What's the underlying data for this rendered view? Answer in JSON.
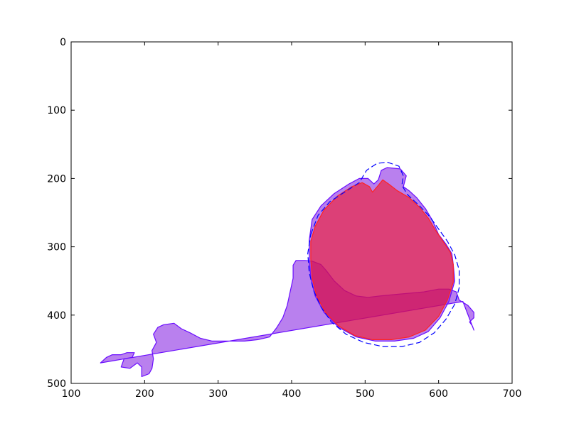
{
  "chart_data": {
    "type": "area",
    "title": "",
    "xlabel": "",
    "ylabel": "",
    "xlim": [
      100,
      700
    ],
    "ylim": [
      500,
      0
    ],
    "y_inverted": true,
    "grid": false,
    "legend": "none",
    "x_ticks": [
      "100",
      "200",
      "300",
      "400",
      "500",
      "600",
      "700"
    ],
    "y_ticks": [
      "0",
      "100",
      "200",
      "300",
      "400",
      "500"
    ],
    "x_tick_values": [
      100,
      200,
      300,
      400,
      500,
      600,
      700
    ],
    "y_tick_values": [
      0,
      100,
      200,
      300,
      400,
      500
    ],
    "series": [
      {
        "kind": "filled-polygon",
        "fill": "#8b2be2",
        "fill_opacity": 0.6,
        "stroke": "#6a0dff",
        "points": [
          [
            140,
            470
          ],
          [
            148,
            462
          ],
          [
            156,
            458
          ],
          [
            168,
            458
          ],
          [
            176,
            455
          ],
          [
            186,
            455
          ],
          [
            183,
            462
          ],
          [
            172,
            464
          ],
          [
            168,
            476
          ],
          [
            180,
            478
          ],
          [
            190,
            470
          ],
          [
            196,
            476
          ],
          [
            196,
            490
          ],
          [
            206,
            486
          ],
          [
            210,
            478
          ],
          [
            212,
            464
          ],
          [
            210,
            452
          ],
          [
            216,
            440
          ],
          [
            212,
            428
          ],
          [
            218,
            418
          ],
          [
            226,
            414
          ],
          [
            240,
            412
          ],
          [
            250,
            420
          ],
          [
            262,
            426
          ],
          [
            276,
            434
          ],
          [
            292,
            438
          ],
          [
            314,
            438
          ],
          [
            336,
            438
          ],
          [
            354,
            436
          ],
          [
            370,
            432
          ],
          [
            380,
            418
          ],
          [
            388,
            404
          ],
          [
            394,
            386
          ],
          [
            398,
            366
          ],
          [
            402,
            346
          ],
          [
            402,
            327
          ],
          [
            406,
            320
          ],
          [
            418,
            320
          ],
          [
            428,
            321
          ],
          [
            440,
            326
          ],
          [
            448,
            336
          ],
          [
            458,
            350
          ],
          [
            472,
            364
          ],
          [
            488,
            372
          ],
          [
            504,
            374
          ],
          [
            520,
            372
          ],
          [
            540,
            370
          ],
          [
            560,
            368
          ],
          [
            580,
            366
          ],
          [
            600,
            362
          ],
          [
            614,
            362
          ],
          [
            624,
            366
          ],
          [
            628,
            378
          ],
          [
            640,
            386
          ],
          [
            648,
            396
          ],
          [
            648,
            404
          ],
          [
            642,
            410
          ],
          [
            646,
            416
          ],
          [
            648,
            422
          ],
          [
            633,
            380
          ]
        ],
        "closed": true
      },
      {
        "kind": "filled-polygon",
        "fill": "#8b2be2",
        "fill_opacity": 0.6,
        "stroke": "#6a0dff",
        "points": [
          [
            428,
            260
          ],
          [
            440,
            240
          ],
          [
            458,
            222
          ],
          [
            478,
            208
          ],
          [
            492,
            200
          ],
          [
            504,
            200
          ],
          [
            512,
            208
          ],
          [
            518,
            202
          ],
          [
            522,
            188
          ],
          [
            530,
            184
          ],
          [
            548,
            186
          ],
          [
            556,
            196
          ],
          [
            552,
            212
          ],
          [
            560,
            218
          ],
          [
            570,
            228
          ],
          [
            582,
            244
          ],
          [
            592,
            262
          ],
          [
            600,
            282
          ],
          [
            610,
            296
          ],
          [
            618,
            310
          ],
          [
            620,
            326
          ],
          [
            622,
            350
          ],
          [
            614,
            380
          ],
          [
            602,
            404
          ],
          [
            586,
            424
          ],
          [
            566,
            434
          ],
          [
            540,
            438
          ],
          [
            514,
            438
          ],
          [
            488,
            432
          ],
          [
            464,
            418
          ],
          [
            444,
            396
          ],
          [
            432,
            372
          ],
          [
            426,
            346
          ],
          [
            424,
            318
          ],
          [
            424,
            290
          ]
        ],
        "closed": true
      },
      {
        "kind": "filled-polygon",
        "fill": "#ff0000",
        "fill_opacity": 0.5,
        "stroke": "#ff2222",
        "points": [
          [
            432,
            270
          ],
          [
            444,
            246
          ],
          [
            462,
            226
          ],
          [
            482,
            212
          ],
          [
            496,
            206
          ],
          [
            506,
            212
          ],
          [
            510,
            220
          ],
          [
            518,
            210
          ],
          [
            524,
            202
          ],
          [
            532,
            208
          ],
          [
            544,
            218
          ],
          [
            560,
            228
          ],
          [
            574,
            242
          ],
          [
            586,
            258
          ],
          [
            596,
            276
          ],
          [
            606,
            292
          ],
          [
            616,
            308
          ],
          [
            620,
            326
          ],
          [
            620,
            352
          ],
          [
            612,
            378
          ],
          [
            600,
            402
          ],
          [
            582,
            422
          ],
          [
            560,
            432
          ],
          [
            536,
            436
          ],
          [
            510,
            436
          ],
          [
            486,
            430
          ],
          [
            464,
            416
          ],
          [
            446,
            396
          ],
          [
            434,
            372
          ],
          [
            428,
            346
          ],
          [
            426,
            318
          ],
          [
            426,
            292
          ]
        ],
        "closed": true
      },
      {
        "kind": "dashed-outline",
        "stroke": "#0000ff",
        "dash": "8,4",
        "points": [
          [
            426,
            282
          ],
          [
            436,
            254
          ],
          [
            452,
            234
          ],
          [
            472,
            220
          ],
          [
            492,
            206
          ],
          [
            502,
            188
          ],
          [
            516,
            178
          ],
          [
            530,
            176
          ],
          [
            546,
            182
          ],
          [
            552,
            196
          ],
          [
            550,
            210
          ],
          [
            558,
            224
          ],
          [
            574,
            240
          ],
          [
            588,
            256
          ],
          [
            600,
            274
          ],
          [
            612,
            292
          ],
          [
            622,
            312
          ],
          [
            628,
            334
          ],
          [
            628,
            360
          ],
          [
            622,
            384
          ],
          [
            610,
            406
          ],
          [
            594,
            426
          ],
          [
            574,
            440
          ],
          [
            550,
            446
          ],
          [
            524,
            446
          ],
          [
            498,
            440
          ],
          [
            474,
            428
          ],
          [
            454,
            410
          ],
          [
            440,
            388
          ],
          [
            430,
            364
          ],
          [
            424,
            338
          ],
          [
            422,
            310
          ]
        ],
        "closed": true
      }
    ]
  }
}
